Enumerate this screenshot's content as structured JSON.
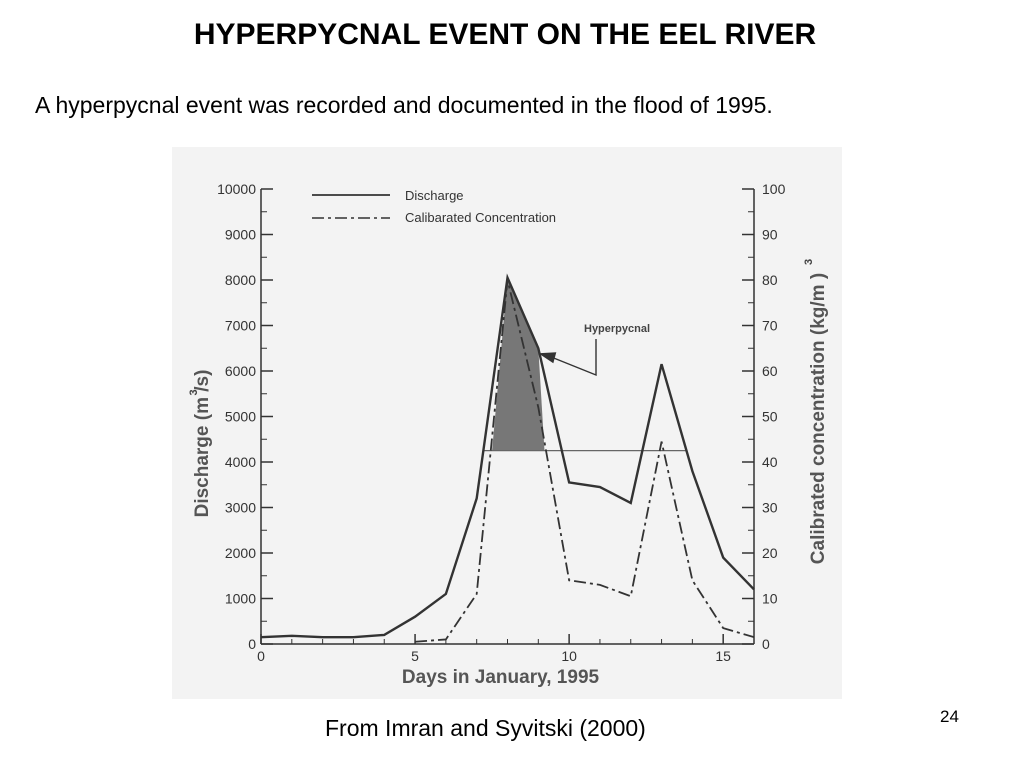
{
  "slide": {
    "title": "HYPERPYCNAL EVENT ON THE EEL RIVER",
    "subtitle": "A hyperpycnal event was recorded and documented in the flood of 1995.",
    "caption": "From Imran and Syvitski (2000)",
    "page_number": "24"
  },
  "chart_data": {
    "type": "line",
    "xlabel": "Days in January, 1995",
    "ylabel_left": "Discharge (m /s)",
    "ylabel_left_superscript": "3",
    "ylabel_right": "Calibrated concentration (kg/m )",
    "ylabel_right_superscript": "3",
    "xlim": [
      0,
      16
    ],
    "ylim_left": [
      0,
      10000
    ],
    "ylim_right": [
      0,
      100
    ],
    "x_ticks": [
      "0",
      "5",
      "10",
      "15"
    ],
    "y_left_ticks": [
      "0",
      "1000",
      "2000",
      "3000",
      "4000",
      "5000",
      "6000",
      "7000",
      "8000",
      "9000",
      "10000"
    ],
    "y_right_ticks": [
      "0",
      "10",
      "20",
      "30",
      "40",
      "50",
      "60",
      "70",
      "80",
      "90",
      "100"
    ],
    "grid": false,
    "legend_position": "top-left",
    "series": [
      {
        "name": "Discharge",
        "axis": "left",
        "style": "solid",
        "x": [
          0,
          1,
          2,
          3,
          4,
          5,
          6,
          7,
          8,
          9,
          10,
          11,
          12,
          13,
          14,
          15,
          16
        ],
        "y": [
          150,
          180,
          150,
          150,
          200,
          600,
          1100,
          3200,
          8050,
          6500,
          3550,
          3450,
          3100,
          6150,
          3800,
          1900,
          1200
        ]
      },
      {
        "name": "Calibarated Concentration",
        "axis": "right",
        "style": "dash-dot",
        "x": [
          5,
          6,
          7,
          8,
          9,
          10,
          11,
          12,
          13,
          14,
          15,
          16
        ],
        "y": [
          0.5,
          1,
          11,
          80,
          52,
          14,
          13,
          10.5,
          44.5,
          14,
          3.5,
          1.5
        ]
      }
    ],
    "threshold": {
      "axis": "right",
      "value": 42.5,
      "x_range": [
        7.2,
        13.8
      ]
    },
    "shaded_region": {
      "x_range": [
        7.5,
        9.2
      ],
      "label": "Hyperpycnal"
    },
    "annotations": [
      {
        "text": "Hyperpycnal",
        "points_to_x": 9.0
      }
    ],
    "colors": {
      "shade": "#777777",
      "line": "#333333",
      "background": "#f3f3f3"
    }
  }
}
